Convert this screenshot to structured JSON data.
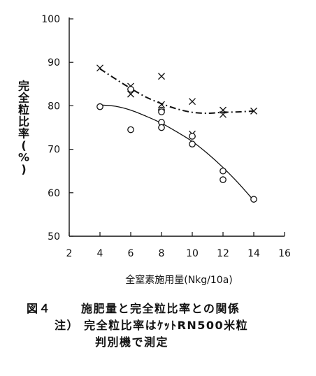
{
  "chart_data": {
    "type": "scatter",
    "xlabel": "全窒素施用量(Nkg/10a)",
    "ylabel": "完全粒比率(%)",
    "xlim": [
      2,
      16
    ],
    "ylim": [
      50,
      100
    ],
    "xticks": [
      "2",
      "4",
      "6",
      "8",
      "10",
      "12",
      "14",
      "16"
    ],
    "yticks": [
      "50",
      "60",
      "70",
      "80",
      "90",
      "100"
    ],
    "series": [
      {
        "marker": "x",
        "line_style": "dash-dot",
        "points": [
          [
            4,
            88.7
          ],
          [
            6,
            84.5
          ],
          [
            6,
            82.7
          ],
          [
            8,
            86.8
          ],
          [
            8,
            80.3
          ],
          [
            10,
            81.0
          ],
          [
            10,
            73.5
          ],
          [
            12,
            79.0
          ],
          [
            12,
            78.0
          ],
          [
            14,
            78.8
          ]
        ],
        "trend": [
          [
            4,
            88.5
          ],
          [
            5,
            86.2
          ],
          [
            6,
            84.0
          ],
          [
            7,
            82.0
          ],
          [
            8,
            80.5
          ],
          [
            9,
            79.3
          ],
          [
            10,
            78.5
          ],
          [
            11,
            78.3
          ],
          [
            12,
            78.5
          ],
          [
            13,
            78.6
          ],
          [
            14,
            78.8
          ]
        ]
      },
      {
        "marker": "o",
        "line_style": "solid",
        "points": [
          [
            4,
            79.8
          ],
          [
            6,
            83.8
          ],
          [
            6,
            74.5
          ],
          [
            8,
            79.0
          ],
          [
            8,
            78.6
          ],
          [
            8,
            76.2
          ],
          [
            8,
            75.0
          ],
          [
            10,
            73.0
          ],
          [
            10,
            71.2
          ],
          [
            12,
            65.0
          ],
          [
            12,
            63.0
          ],
          [
            14,
            58.5
          ]
        ],
        "trend": [
          [
            4,
            80.2
          ],
          [
            5,
            79.9
          ],
          [
            6,
            79.0
          ],
          [
            7,
            77.6
          ],
          [
            8,
            76.0
          ],
          [
            9,
            74.0
          ],
          [
            10,
            71.8
          ],
          [
            11,
            69.0
          ],
          [
            12,
            65.8
          ],
          [
            13,
            62.2
          ],
          [
            14,
            58.2
          ]
        ]
      }
    ]
  },
  "caption": {
    "figure_number": "図４",
    "title": "施肥量と完全粒比率との関係",
    "note_line1": "注） 完全粒比率はｹｯﾄRN500米粒",
    "note_line2": "判別機で測定"
  },
  "colors": {
    "ink": "#111111",
    "background": "#ffffff"
  }
}
